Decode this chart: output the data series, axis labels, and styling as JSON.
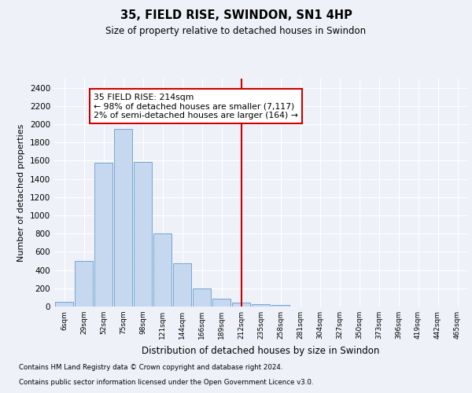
{
  "title": "35, FIELD RISE, SWINDON, SN1 4HP",
  "subtitle": "Size of property relative to detached houses in Swindon",
  "xlabel": "Distribution of detached houses by size in Swindon",
  "ylabel": "Number of detached properties",
  "bar_labels": [
    "6sqm",
    "29sqm",
    "52sqm",
    "75sqm",
    "98sqm",
    "121sqm",
    "144sqm",
    "166sqm",
    "189sqm",
    "212sqm",
    "235sqm",
    "258sqm",
    "281sqm",
    "304sqm",
    "327sqm",
    "350sqm",
    "373sqm",
    "396sqm",
    "419sqm",
    "442sqm",
    "465sqm"
  ],
  "bar_values": [
    50,
    500,
    1580,
    1950,
    1590,
    800,
    470,
    200,
    90,
    40,
    30,
    20,
    0,
    0,
    0,
    0,
    0,
    0,
    0,
    0,
    0
  ],
  "bar_color": "#c5d8f0",
  "bar_edgecolor": "#6699cc",
  "vline_color": "#cc0000",
  "annotation_text": "35 FIELD RISE: 214sqm\n← 98% of detached houses are smaller (7,117)\n2% of semi-detached houses are larger (164) →",
  "annotation_box_color": "#ffffff",
  "annotation_box_edgecolor": "#cc0000",
  "ylim": [
    0,
    2500
  ],
  "yticks": [
    0,
    200,
    400,
    600,
    800,
    1000,
    1200,
    1400,
    1600,
    1800,
    2000,
    2200,
    2400
  ],
  "footer_line1": "Contains HM Land Registry data © Crown copyright and database right 2024.",
  "footer_line2": "Contains public sector information licensed under the Open Government Licence v3.0.",
  "bg_color": "#eef2f8",
  "grid_color": "#ffffff"
}
